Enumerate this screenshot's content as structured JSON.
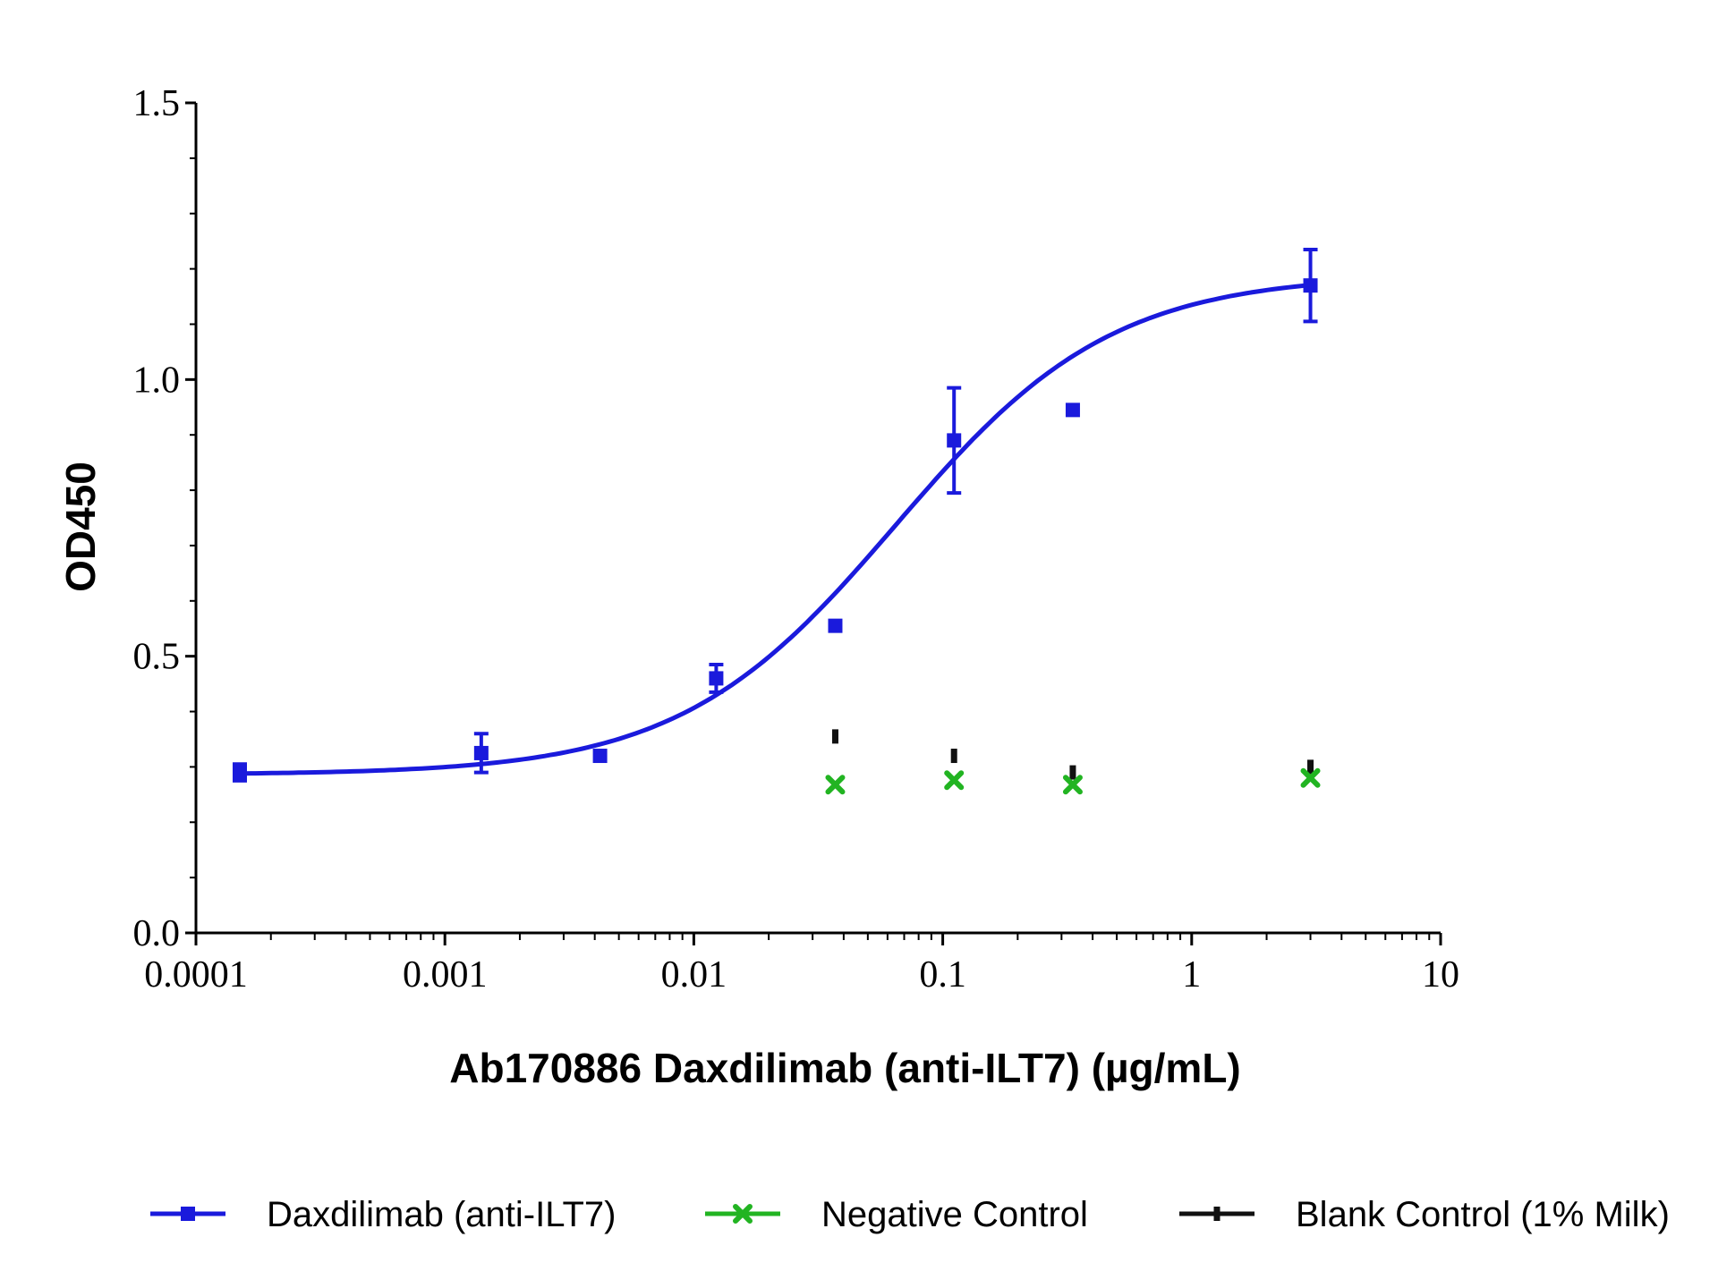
{
  "chart_data": {
    "type": "scatter",
    "title": "",
    "xlabel": "Ab170886 Daxdilimab (anti-ILT7) (µg/mL)",
    "ylabel": "OD450",
    "x_scale": "log",
    "xlim": [
      0.0001,
      10
    ],
    "ylim": [
      0.0,
      1.5
    ],
    "x_ticks": [
      "0.0001",
      "0.001",
      "0.01",
      "0.1",
      "1",
      "10"
    ],
    "y_ticks": [
      "0.0",
      "0.5",
      "1.0",
      "1.5"
    ],
    "grid": false,
    "legend_position": "bottom",
    "series": [
      {
        "name": "Daxdilimab (anti-ILT7)",
        "color": "#1a1adc",
        "marker": "square",
        "fit": "sigmoidal",
        "fit_params": {
          "bottom": 0.286,
          "top": 1.19,
          "ec50": 0.065,
          "hill": 1.0
        },
        "x": [
          0.00015,
          0.0014,
          0.0042,
          0.0123,
          0.037,
          0.111,
          0.333,
          3.0
        ],
        "y": [
          0.29,
          0.325,
          0.32,
          0.46,
          0.555,
          0.89,
          0.945,
          1.17
        ],
        "err": [
          0.015,
          0.035,
          0.0,
          0.025,
          0.0,
          0.095,
          0.0,
          0.065
        ]
      },
      {
        "name": "Negative Control",
        "color": "#22b422",
        "marker": "cross",
        "x": [
          0.037,
          0.111,
          0.333,
          3.0
        ],
        "y": [
          0.268,
          0.276,
          0.268,
          0.28
        ],
        "err": [
          0,
          0,
          0,
          0
        ]
      },
      {
        "name": "Blank Control (1% Milk)",
        "color": "#111111",
        "marker": "dash",
        "x": [
          0.037,
          0.111,
          0.333,
          3.0
        ],
        "y": [
          0.355,
          0.32,
          0.29,
          0.3
        ],
        "err": [
          0,
          0,
          0,
          0
        ]
      }
    ]
  }
}
